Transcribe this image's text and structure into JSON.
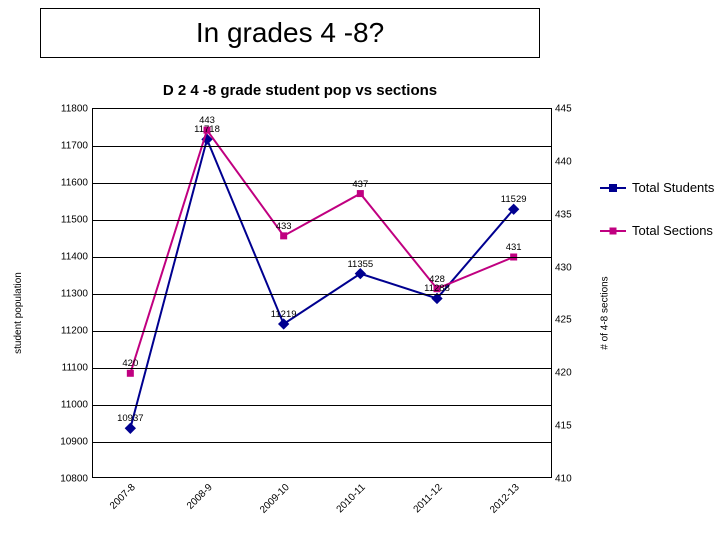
{
  "slide_title": "In grades 4 -8?",
  "chart": {
    "type": "line",
    "title": "D 2 4 -8 grade student pop vs sections",
    "categories": [
      "2007-8",
      "2008-9",
      "2009-10",
      "2010-11",
      "2011-12",
      "2012-13"
    ],
    "y_left": {
      "label": "student population",
      "min": 10800,
      "max": 11800,
      "step": 100,
      "ticks": [
        10800,
        10900,
        11000,
        11100,
        11200,
        11300,
        11400,
        11500,
        11600,
        11700,
        11800
      ]
    },
    "y_right": {
      "label": "# of 4-8 sections",
      "min": 410,
      "max": 445,
      "step": 5,
      "ticks": [
        410,
        415,
        420,
        425,
        430,
        435,
        440,
        445
      ]
    },
    "series": [
      {
        "name": "Total Students",
        "axis": "left",
        "color": "#000090",
        "marker": "diamond",
        "line_width": 2,
        "values": [
          10937,
          11718,
          11219,
          11355,
          11288,
          11529
        ],
        "labels": [
          "10937",
          "11718",
          "11219",
          "11355",
          "11288",
          "11529"
        ]
      },
      {
        "name": "Total Sections",
        "axis": "right",
        "color": "#c00080",
        "marker": "square",
        "line_width": 2,
        "values": [
          420,
          443,
          433,
          437,
          428,
          431
        ],
        "labels": [
          "420",
          "443",
          "433",
          "437",
          "428",
          "431"
        ]
      }
    ],
    "background_color": "#ffffff",
    "grid_color": "#000000",
    "tick_fontsize": 10,
    "label_fontsize": 10,
    "title_fontsize": 15
  },
  "legend": {
    "items": [
      "Total Students",
      "Total Sections"
    ]
  }
}
